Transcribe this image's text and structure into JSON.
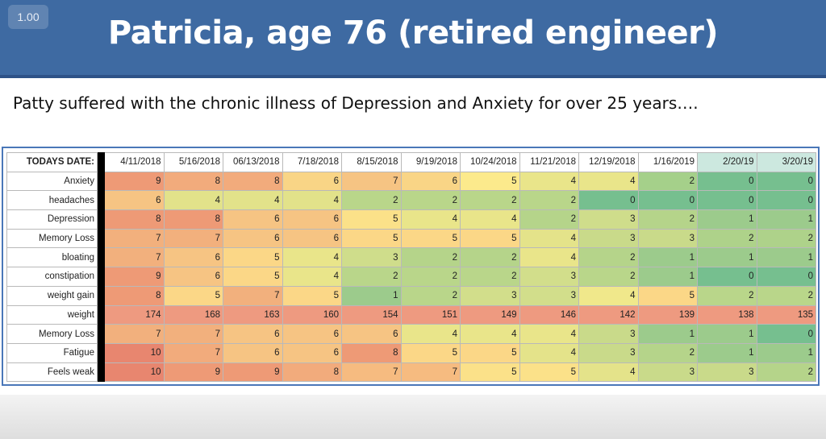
{
  "player": {
    "zoom": "1.00"
  },
  "slide": {
    "title": "Patricia, age 76 (retired engineer)",
    "subtitle": "Patty suffered with the chronic illness of Depression and Anxiety for over 25 years…."
  },
  "table": {
    "corner_label": "TODAYS DATE:",
    "dates": [
      "4/11/2018",
      "5/16/2018",
      "06/13/2018",
      "7/18/2018",
      "8/15/2018",
      "9/19/2018",
      "10/24/2018",
      "11/21/2018",
      "12/19/2018",
      "1/16/2019",
      "2/20/19",
      "3/20/19"
    ],
    "date_colors": [
      "#ffffff",
      "#ffffff",
      "#ffffff",
      "#ffffff",
      "#ffffff",
      "#ffffff",
      "#ffffff",
      "#ffffff",
      "#ffffff",
      "#ffffff",
      "#cce8df",
      "#cce8df"
    ],
    "rows": [
      {
        "label": "Anxiety",
        "values": [
          9,
          8,
          8,
          6,
          7,
          6,
          5,
          4,
          4,
          2,
          0,
          0
        ]
      },
      {
        "label": "headaches",
        "values": [
          6,
          4,
          4,
          4,
          2,
          2,
          2,
          2,
          0,
          0,
          0,
          0
        ]
      },
      {
        "label": "Depression",
        "values": [
          8,
          8,
          6,
          6,
          5,
          4,
          4,
          2,
          3,
          2,
          1,
          1
        ]
      },
      {
        "label": "Memory Loss",
        "values": [
          7,
          7,
          6,
          6,
          5,
          5,
          5,
          4,
          3,
          3,
          2,
          2
        ]
      },
      {
        "label": "bloating",
        "values": [
          7,
          6,
          5,
          4,
          3,
          2,
          2,
          4,
          2,
          1,
          1,
          1
        ]
      },
      {
        "label": "constipation",
        "values": [
          9,
          6,
          5,
          4,
          2,
          2,
          2,
          3,
          2,
          1,
          0,
          0
        ]
      },
      {
        "label": "weight gain",
        "values": [
          8,
          5,
          7,
          5,
          1,
          2,
          3,
          3,
          4,
          5,
          2,
          2
        ]
      },
      {
        "label": "weight",
        "values": [
          174,
          168,
          163,
          160,
          154,
          151,
          149,
          146,
          142,
          139,
          138,
          135
        ]
      },
      {
        "label": "Memory Loss",
        "values": [
          7,
          7,
          6,
          6,
          6,
          4,
          4,
          4,
          3,
          1,
          1,
          0
        ]
      },
      {
        "label": "Fatigue",
        "values": [
          10,
          7,
          6,
          6,
          8,
          5,
          5,
          4,
          3,
          2,
          1,
          1
        ]
      },
      {
        "label": "Feels weak",
        "values": [
          10,
          9,
          9,
          8,
          7,
          7,
          5,
          5,
          4,
          3,
          3,
          2
        ]
      }
    ],
    "cell_colors": [
      [
        "#ee9a76",
        "#f2ab7c",
        "#f2ab7c",
        "#f9d586",
        "#f6c483",
        "#f9d586",
        "#fcea8c",
        "#e9e58a",
        "#e9e58a",
        "#a5d08a",
        "#76bf8f",
        "#76bf8f"
      ],
      [
        "#f6c483",
        "#e2e28a",
        "#e2e28a",
        "#e2e28a",
        "#b9d68a",
        "#b9d68a",
        "#b9d68a",
        "#b9d68a",
        "#76bf8f",
        "#76bf8f",
        "#76bf8f",
        "#76bf8f"
      ],
      [
        "#ee9a76",
        "#ee9a76",
        "#f6c483",
        "#f6c483",
        "#fbe189",
        "#e9e58a",
        "#e9e58a",
        "#b5d48a",
        "#cfdd8b",
        "#b5d48a",
        "#9ccb8c",
        "#9ccb8c"
      ],
      [
        "#f2b07d",
        "#f2b07d",
        "#f6c483",
        "#f6c483",
        "#fbd787",
        "#fbd787",
        "#fbd787",
        "#e4e38a",
        "#c9da8a",
        "#c9da8a",
        "#aed28a",
        "#aed28a"
      ],
      [
        "#f2b07d",
        "#f6c483",
        "#fbd787",
        "#e9e58a",
        "#cfdd8b",
        "#b5d48a",
        "#b5d48a",
        "#e9e58a",
        "#b5d48a",
        "#9ccb8c",
        "#9ccb8c",
        "#9ccb8c"
      ],
      [
        "#ee9a76",
        "#f6c483",
        "#fbd787",
        "#e9e58a",
        "#b9d68a",
        "#b9d68a",
        "#b9d68a",
        "#d2de8b",
        "#b9d68a",
        "#9ccb8c",
        "#76bf8f",
        "#76bf8f"
      ],
      [
        "#ee9a76",
        "#fbd787",
        "#f2b07d",
        "#fbd787",
        "#9ccb8c",
        "#b9d68a",
        "#d2de8b",
        "#d2de8b",
        "#f0e88b",
        "#fbd787",
        "#b9d68a",
        "#b9d68a"
      ],
      [
        "#ee9a80",
        "#ee9a80",
        "#ee9a80",
        "#ee9a80",
        "#ee9a80",
        "#ee9a80",
        "#ee9a80",
        "#ee9a80",
        "#ee9a80",
        "#ee9a80",
        "#ee9a80",
        "#ee9a80"
      ],
      [
        "#f2b07d",
        "#f2b07d",
        "#f6c483",
        "#f6c483",
        "#f6c483",
        "#e9e58a",
        "#e9e58a",
        "#e9e58a",
        "#c9da8a",
        "#9ccb8c",
        "#9ccb8c",
        "#76bf8f"
      ],
      [
        "#e8866f",
        "#f2ab7c",
        "#f6c483",
        "#f6c483",
        "#ee9a76",
        "#fbd787",
        "#fbd787",
        "#e4e38a",
        "#c9da8a",
        "#b5d48a",
        "#9ccb8c",
        "#9ccb8c"
      ],
      [
        "#e8866f",
        "#ee9a76",
        "#ee9a76",
        "#f2ab7c",
        "#f6bb80",
        "#f6bb80",
        "#fbe189",
        "#fbe189",
        "#e4e38a",
        "#c9da8a",
        "#c9da8a",
        "#b5d48a"
      ]
    ]
  }
}
